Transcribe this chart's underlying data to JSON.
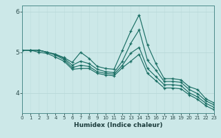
{
  "xlabel": "Humidex (Indice chaleur)",
  "bg_color": "#cce8e8",
  "line_color": "#1a6e64",
  "grid_color_v": "#c0dede",
  "grid_color_h": "#b8d8d8",
  "xmin": 0,
  "xmax": 23,
  "ymin": 3.5,
  "ymax": 6.15,
  "yticks": [
    4,
    5,
    6
  ],
  "xticks": [
    0,
    1,
    2,
    3,
    4,
    5,
    6,
    7,
    8,
    9,
    10,
    11,
    12,
    13,
    14,
    15,
    16,
    17,
    18,
    19,
    20,
    21,
    22,
    23
  ],
  "series": [
    [
      5.05,
      5.05,
      5.05,
      5.0,
      4.95,
      4.87,
      4.75,
      5.0,
      4.85,
      4.65,
      4.6,
      4.58,
      5.05,
      5.52,
      5.92,
      5.18,
      4.72,
      4.35,
      4.35,
      4.32,
      4.15,
      4.08,
      3.85,
      3.75
    ],
    [
      5.05,
      5.05,
      5.05,
      5.0,
      4.95,
      4.85,
      4.68,
      4.78,
      4.72,
      4.58,
      4.52,
      4.5,
      4.78,
      5.22,
      5.55,
      4.8,
      4.56,
      4.28,
      4.28,
      4.26,
      4.08,
      3.98,
      3.8,
      3.7
    ],
    [
      5.05,
      5.05,
      5.05,
      5.0,
      4.93,
      4.82,
      4.62,
      4.68,
      4.65,
      4.52,
      4.48,
      4.46,
      4.68,
      4.98,
      5.12,
      4.6,
      4.4,
      4.2,
      4.2,
      4.18,
      4.0,
      3.9,
      3.74,
      3.64
    ],
    [
      5.05,
      5.05,
      5.0,
      4.97,
      4.88,
      4.78,
      4.58,
      4.6,
      4.6,
      4.48,
      4.44,
      4.42,
      4.62,
      4.78,
      4.95,
      4.48,
      4.3,
      4.12,
      4.12,
      4.1,
      3.95,
      3.84,
      3.68,
      3.58
    ]
  ]
}
